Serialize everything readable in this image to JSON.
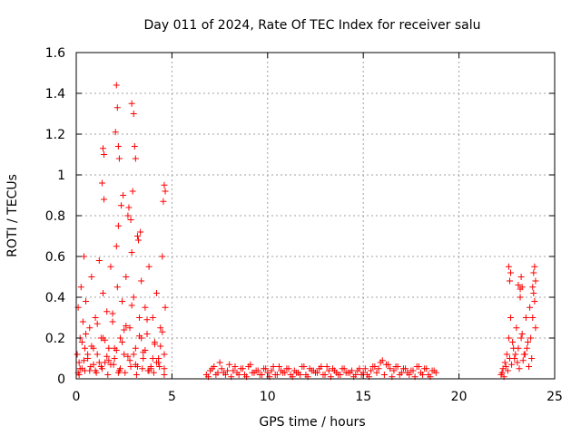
{
  "chart_data": {
    "type": "scatter",
    "title": "Day 011 of 2024, Rate Of TEC Index for receiver salu",
    "xlabel": "GPS time / hours",
    "ylabel": "ROTI / TECUs",
    "xlim": [
      0,
      25
    ],
    "ylim": [
      0,
      1.6
    ],
    "xticks": [
      "0",
      "5",
      "10",
      "15",
      "20",
      "25"
    ],
    "yticks": [
      "0",
      "0.2",
      "0.4",
      "0.6",
      "0.8",
      "1",
      "1.2",
      "1.4",
      "1.6"
    ],
    "grid": true,
    "legend": "none",
    "marker": "plus",
    "color": "#ff0000",
    "series": [
      {
        "x": [
          0.05,
          0.1,
          0.15,
          0.2,
          0.25,
          0.3,
          0.35,
          0.4,
          0.45,
          0.5,
          0.6,
          0.7,
          0.8,
          0.9,
          1.0,
          1.1,
          1.2,
          1.3,
          1.4,
          1.5,
          1.6,
          1.7,
          1.8,
          1.9,
          2.0,
          2.1,
          2.15,
          2.2,
          2.3,
          2.4,
          2.5,
          2.6,
          2.7,
          2.8,
          2.9,
          3.0,
          3.1,
          3.2,
          3.3,
          3.4,
          3.5,
          3.6,
          3.7,
          3.8,
          3.9,
          4.0,
          4.1,
          4.2,
          4.3,
          4.4,
          4.5,
          4.6,
          4.65,
          0.1,
          0.3,
          0.5,
          0.7,
          0.9,
          1.1,
          1.3,
          1.5,
          1.7,
          1.9,
          2.1,
          2.3,
          2.5,
          2.7,
          2.9,
          3.1,
          3.3,
          3.5,
          3.7,
          3.9,
          4.1,
          4.3,
          4.5,
          0.2,
          0.4,
          0.6,
          0.8,
          1.0,
          1.2,
          1.4,
          1.6,
          1.8,
          2.0,
          2.2,
          2.4,
          2.6,
          2.8,
          3.0,
          3.2,
          3.4,
          3.6,
          3.8,
          4.0,
          4.2,
          4.4,
          4.6,
          0.15,
          0.45,
          0.75,
          1.05,
          1.35,
          1.65,
          1.95,
          2.25,
          2.55,
          2.85,
          3.15,
          3.45,
          3.75,
          4.05,
          4.35,
          4.6,
          2.1,
          2.15,
          2.05,
          2.2,
          2.25,
          1.4,
          1.45,
          1.35,
          2.9,
          3.0,
          3.05,
          2.95,
          3.1,
          1.45,
          4.6,
          4.65,
          4.55,
          2.35,
          2.45,
          2.75,
          2.85,
          3.25,
          3.35
        ],
        "y": [
          0.12,
          0.35,
          0.08,
          0.2,
          0.45,
          0.05,
          0.28,
          0.6,
          0.15,
          0.38,
          0.1,
          0.25,
          0.5,
          0.07,
          0.3,
          0.12,
          0.58,
          0.2,
          0.42,
          0.08,
          0.33,
          0.15,
          0.55,
          0.28,
          0.1,
          0.65,
          0.45,
          0.75,
          0.2,
          0.38,
          0.12,
          0.5,
          0.8,
          0.25,
          0.62,
          0.4,
          0.15,
          0.7,
          0.3,
          0.48,
          0.1,
          0.35,
          0.22,
          0.55,
          0.05,
          0.3,
          0.18,
          0.42,
          0.08,
          0.25,
          0.6,
          0.12,
          0.35,
          0.03,
          0.18,
          0.22,
          0.04,
          0.15,
          0.27,
          0.06,
          0.19,
          0.09,
          0.32,
          0.14,
          0.05,
          0.24,
          0.11,
          0.36,
          0.07,
          0.21,
          0.13,
          0.29,
          0.06,
          0.17,
          0.1,
          0.23,
          0.05,
          0.09,
          0.12,
          0.16,
          0.04,
          0.08,
          0.2,
          0.11,
          0.07,
          0.15,
          0.03,
          0.18,
          0.26,
          0.09,
          0.12,
          0.06,
          0.2,
          0.14,
          0.04,
          0.1,
          0.08,
          0.16,
          0.05,
          0.02,
          0.04,
          0.06,
          0.03,
          0.05,
          0.02,
          0.07,
          0.04,
          0.03,
          0.06,
          0.02,
          0.05,
          0.04,
          0.03,
          0.06,
          0.02,
          1.44,
          1.33,
          1.21,
          1.14,
          1.08,
          1.13,
          1.1,
          0.96,
          1.35,
          1.3,
          1.14,
          0.92,
          1.08,
          0.88,
          0.95,
          0.92,
          0.87,
          0.85,
          0.9,
          0.84,
          0.78,
          0.68,
          0.72
        ]
      },
      {
        "x": [
          6.8,
          7.0,
          7.2,
          7.4,
          7.6,
          7.8,
          8.0,
          8.2,
          8.4,
          8.6,
          8.8,
          9.0,
          9.2,
          9.4,
          9.6,
          9.8,
          10.0,
          10.2,
          10.4,
          10.6,
          10.8,
          11.0,
          11.2,
          11.4,
          11.6,
          11.8,
          12.0,
          12.2,
          12.4,
          12.6,
          12.8,
          13.0,
          13.2,
          13.4,
          13.6,
          13.8,
          14.0,
          14.2,
          14.4,
          14.6,
          14.8,
          15.0,
          15.2,
          15.4,
          15.6,
          15.8,
          16.0,
          16.2,
          16.4,
          16.6,
          16.8,
          17.0,
          17.2,
          17.4,
          17.6,
          17.8,
          18.0,
          18.2,
          18.4,
          18.6,
          18.8,
          6.9,
          7.3,
          7.7,
          8.1,
          8.5,
          8.9,
          9.3,
          9.7,
          10.1,
          10.5,
          10.9,
          11.3,
          11.7,
          12.1,
          12.5,
          12.9,
          13.3,
          13.7,
          14.1,
          14.5,
          14.9,
          15.3,
          15.7,
          16.1,
          16.5,
          16.9,
          17.3,
          17.7,
          18.1,
          18.5,
          7.1,
          7.5,
          7.9,
          8.3,
          8.7,
          9.1,
          9.5,
          9.9,
          10.3,
          10.7,
          11.1,
          11.5,
          11.9,
          12.3,
          12.7,
          13.1,
          13.5,
          13.9,
          14.3,
          14.7,
          15.1,
          15.5,
          15.9,
          16.3,
          16.7,
          17.1,
          17.5,
          17.9,
          18.3,
          18.7
        ],
        "y": [
          0.02,
          0.04,
          0.06,
          0.03,
          0.05,
          0.02,
          0.07,
          0.04,
          0.03,
          0.05,
          0.02,
          0.06,
          0.03,
          0.04,
          0.02,
          0.05,
          0.03,
          0.04,
          0.02,
          0.06,
          0.03,
          0.05,
          0.02,
          0.04,
          0.03,
          0.06,
          0.02,
          0.05,
          0.04,
          0.03,
          0.06,
          0.02,
          0.04,
          0.05,
          0.03,
          0.02,
          0.05,
          0.03,
          0.04,
          0.02,
          0.05,
          0.03,
          0.02,
          0.04,
          0.06,
          0.05,
          0.09,
          0.07,
          0.05,
          0.04,
          0.06,
          0.03,
          0.05,
          0.02,
          0.04,
          0.06,
          0.03,
          0.05,
          0.02,
          0.04,
          0.03,
          0.01,
          0.02,
          0.03,
          0.01,
          0.02,
          0.01,
          0.03,
          0.02,
          0.01,
          0.02,
          0.03,
          0.01,
          0.02,
          0.01,
          0.03,
          0.02,
          0.01,
          0.02,
          0.03,
          0.01,
          0.02,
          0.01,
          0.03,
          0.02,
          0.01,
          0.02,
          0.03,
          0.01,
          0.02,
          0.01,
          0.05,
          0.08,
          0.04,
          0.06,
          0.05,
          0.07,
          0.04,
          0.05,
          0.06,
          0.04,
          0.05,
          0.03,
          0.06,
          0.04,
          0.05,
          0.06,
          0.04,
          0.05,
          0.03,
          0.04,
          0.05,
          0.06,
          0.08,
          0.07,
          0.06,
          0.05,
          0.04,
          0.06,
          0.05,
          0.04
        ]
      },
      {
        "x": [
          22.2,
          22.3,
          22.4,
          22.5,
          22.6,
          22.7,
          22.8,
          22.9,
          23.0,
          23.1,
          23.2,
          23.3,
          23.4,
          23.5,
          23.6,
          23.7,
          23.8,
          23.9,
          24.0,
          22.25,
          22.45,
          22.65,
          22.85,
          23.05,
          23.25,
          23.45,
          23.65,
          23.85,
          22.35,
          22.55,
          22.75,
          22.95,
          23.15,
          23.35,
          23.55,
          23.75,
          23.95,
          22.6,
          22.7,
          22.65,
          23.1,
          23.2,
          23.25,
          23.3,
          23.9,
          23.95,
          24.0,
          23.85
        ],
        "y": [
          0.02,
          0.05,
          0.08,
          0.12,
          0.2,
          0.3,
          0.18,
          0.1,
          0.25,
          0.15,
          0.4,
          0.22,
          0.12,
          0.3,
          0.18,
          0.35,
          0.1,
          0.42,
          0.25,
          0.03,
          0.06,
          0.1,
          0.15,
          0.08,
          0.2,
          0.12,
          0.06,
          0.3,
          0.01,
          0.04,
          0.07,
          0.12,
          0.05,
          0.09,
          0.15,
          0.2,
          0.38,
          0.55,
          0.52,
          0.48,
          0.46,
          0.44,
          0.5,
          0.45,
          0.52,
          0.55,
          0.48,
          0.45
        ]
      }
    ]
  }
}
